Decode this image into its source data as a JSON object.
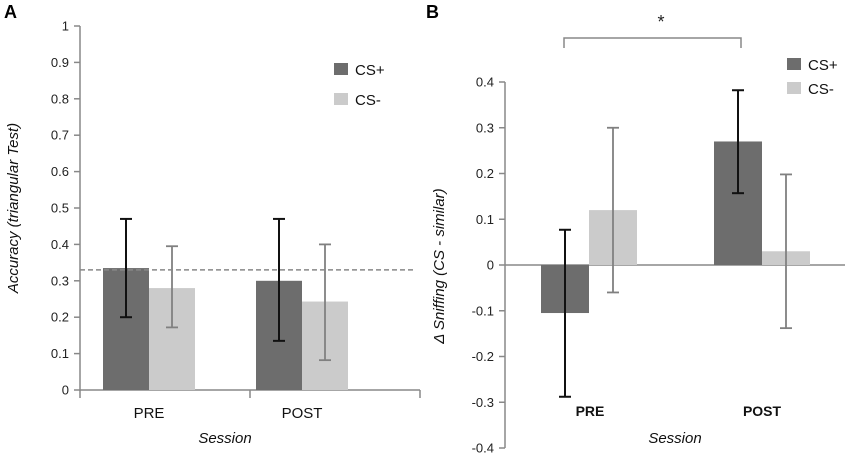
{
  "colors": {
    "cs_plus": "#6d6d6d",
    "cs_minus": "#cbcbcb",
    "axis": "#888888",
    "err_plus": "#111111",
    "err_minus": "#808080"
  },
  "chart_data": [
    {
      "type": "bar",
      "panel": "A",
      "categories": [
        "PRE",
        "POST"
      ],
      "series": [
        {
          "name": "CS+",
          "values": [
            0.335,
            0.3
          ],
          "err_low": [
            0.2,
            0.135
          ],
          "err_high": [
            0.47,
            0.47
          ]
        },
        {
          "name": "CS-",
          "values": [
            0.28,
            0.243
          ],
          "err_low": [
            0.172,
            0.082
          ],
          "err_high": [
            0.395,
            0.4
          ]
        }
      ],
      "reference_line": 0.33,
      "xlabel": "Session",
      "ylabel": "Accuracy  (triangular Test)",
      "ylim": [
        0,
        1
      ],
      "yticks": [
        "0",
        "0.1",
        "0.2",
        "0.3",
        "0.4",
        "0.5",
        "0.6",
        "0.7",
        "0.8",
        "0.9",
        "1"
      ],
      "legend": "top-right"
    },
    {
      "type": "bar",
      "panel": "B",
      "categories": [
        "PRE",
        "POST"
      ],
      "series": [
        {
          "name": "CS+",
          "values": [
            -0.105,
            0.27
          ],
          "err_low": [
            -0.288,
            0.157
          ],
          "err_high": [
            0.077,
            0.382
          ]
        },
        {
          "name": "CS-",
          "values": [
            0.12,
            0.03
          ],
          "err_low": [
            -0.06,
            -0.138
          ],
          "err_high": [
            0.3,
            0.198
          ]
        }
      ],
      "xlabel": "Session",
      "ylabel": "Δ  Sniffing (CS - similar)",
      "ylim": [
        -0.4,
        0.4
      ],
      "yticks": [
        "-0.4",
        "-0.3",
        "-0.2",
        "-0.1",
        "0",
        "0.1",
        "0.2",
        "0.3",
        "0.4"
      ],
      "annotation": "*",
      "legend": "top-right"
    }
  ]
}
